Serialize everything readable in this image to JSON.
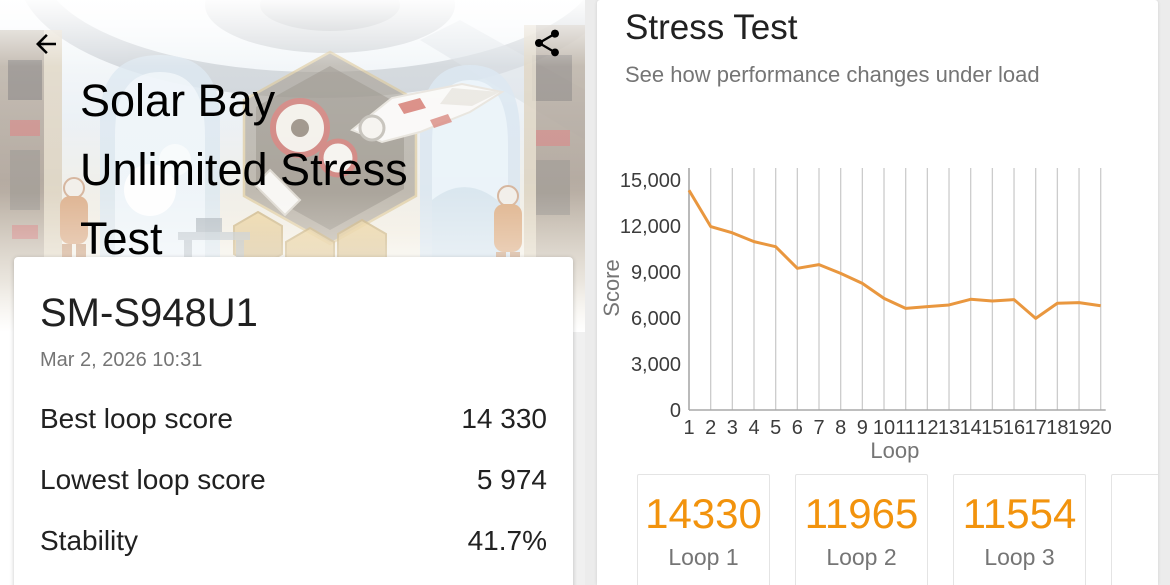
{
  "left_pane": {
    "hero": {
      "title_lines": [
        "Solar Bay",
        "Unlimited Stress",
        "Test"
      ],
      "back_icon": "arrow-back",
      "share_icon": "share"
    },
    "result_card": {
      "device": "SM-S948U1",
      "datetime": "Mar 2, 2026 10:31",
      "stats": [
        {
          "label": "Best loop score",
          "value": "14 330"
        },
        {
          "label": "Lowest loop score",
          "value": "5 974"
        },
        {
          "label": "Stability",
          "value": "41.7%"
        }
      ]
    }
  },
  "right_pane": {
    "title": "Stress Test",
    "subtitle": "See how performance changes under load",
    "loop_cards": [
      {
        "value": "14330",
        "label": "Loop 1"
      },
      {
        "value": "11965",
        "label": "Loop 2"
      },
      {
        "value": "11554",
        "label": "Loop 3"
      },
      {
        "value": "",
        "label": ""
      }
    ]
  },
  "chart_data": {
    "type": "line",
    "title": "",
    "xlabel": "Loop",
    "ylabel": "Score",
    "x": [
      1,
      2,
      3,
      4,
      5,
      6,
      7,
      8,
      9,
      10,
      11,
      12,
      13,
      14,
      15,
      16,
      17,
      18,
      19,
      20
    ],
    "values": [
      14330,
      11965,
      11554,
      10980,
      10650,
      9240,
      9480,
      8910,
      8260,
      7280,
      6630,
      6740,
      6850,
      7220,
      7110,
      7200,
      5974,
      6960,
      7000,
      6800
    ],
    "ylim": [
      0,
      15750
    ],
    "yticks": [
      0,
      3000,
      6000,
      9000,
      12000,
      15000
    ],
    "ytick_labels": [
      "0",
      "3,000",
      "6,000",
      "9,000",
      "12,000",
      "15,000"
    ],
    "xtick_labels": [
      "1",
      "2",
      "3",
      "4",
      "5",
      "6",
      "7",
      "8",
      "9",
      "10",
      "11",
      "12",
      "13",
      "14",
      "15",
      "16",
      "17",
      "18",
      "19",
      "20"
    ],
    "grid": "vertical",
    "legend": "none",
    "line_color": "#E9973F"
  },
  "colors": {
    "accent_orange": "#F2930D",
    "line_orange": "#E9973F",
    "text_primary": "#212121",
    "text_secondary": "#757575",
    "gridline": "#cccccc",
    "axis": "#a8a8a8",
    "page_bg": "#ececec"
  }
}
